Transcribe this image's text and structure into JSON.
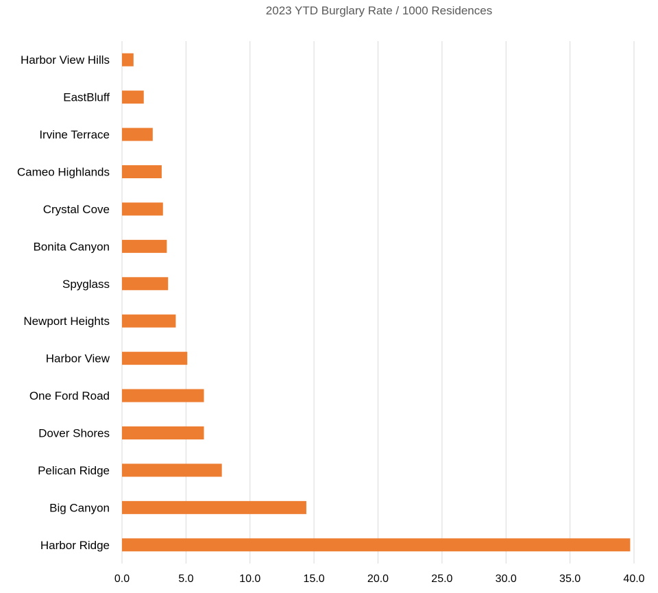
{
  "chart_data": {
    "type": "bar",
    "orientation": "horizontal",
    "title": "2023 YTD Burglary Rate / 1000 Residences",
    "xlabel": "",
    "ylabel": "",
    "categories": [
      "Harbor View Hills",
      "EastBluff",
      "Irvine Terrace",
      "Cameo Highlands",
      "Crystal Cove",
      "Bonita Canyon",
      "Spyglass",
      "Newport Heights",
      "Harbor View",
      "One Ford Road",
      "Dover Shores",
      "Pelican Ridge",
      "Big Canyon",
      "Harbor Ridge"
    ],
    "values": [
      0.9,
      1.7,
      2.4,
      3.1,
      3.2,
      3.5,
      3.6,
      4.2,
      5.1,
      6.4,
      6.4,
      7.8,
      14.4,
      39.7
    ],
    "xlim": [
      0,
      40
    ],
    "ticks": [
      "0.0",
      "5.0",
      "10.0",
      "15.0",
      "20.0",
      "25.0",
      "30.0",
      "35.0",
      "40.0"
    ],
    "tick_values": [
      0,
      5,
      10,
      15,
      20,
      25,
      30,
      35,
      40
    ],
    "grid": true,
    "legend": "none",
    "bar_color": "#ED7D31"
  }
}
